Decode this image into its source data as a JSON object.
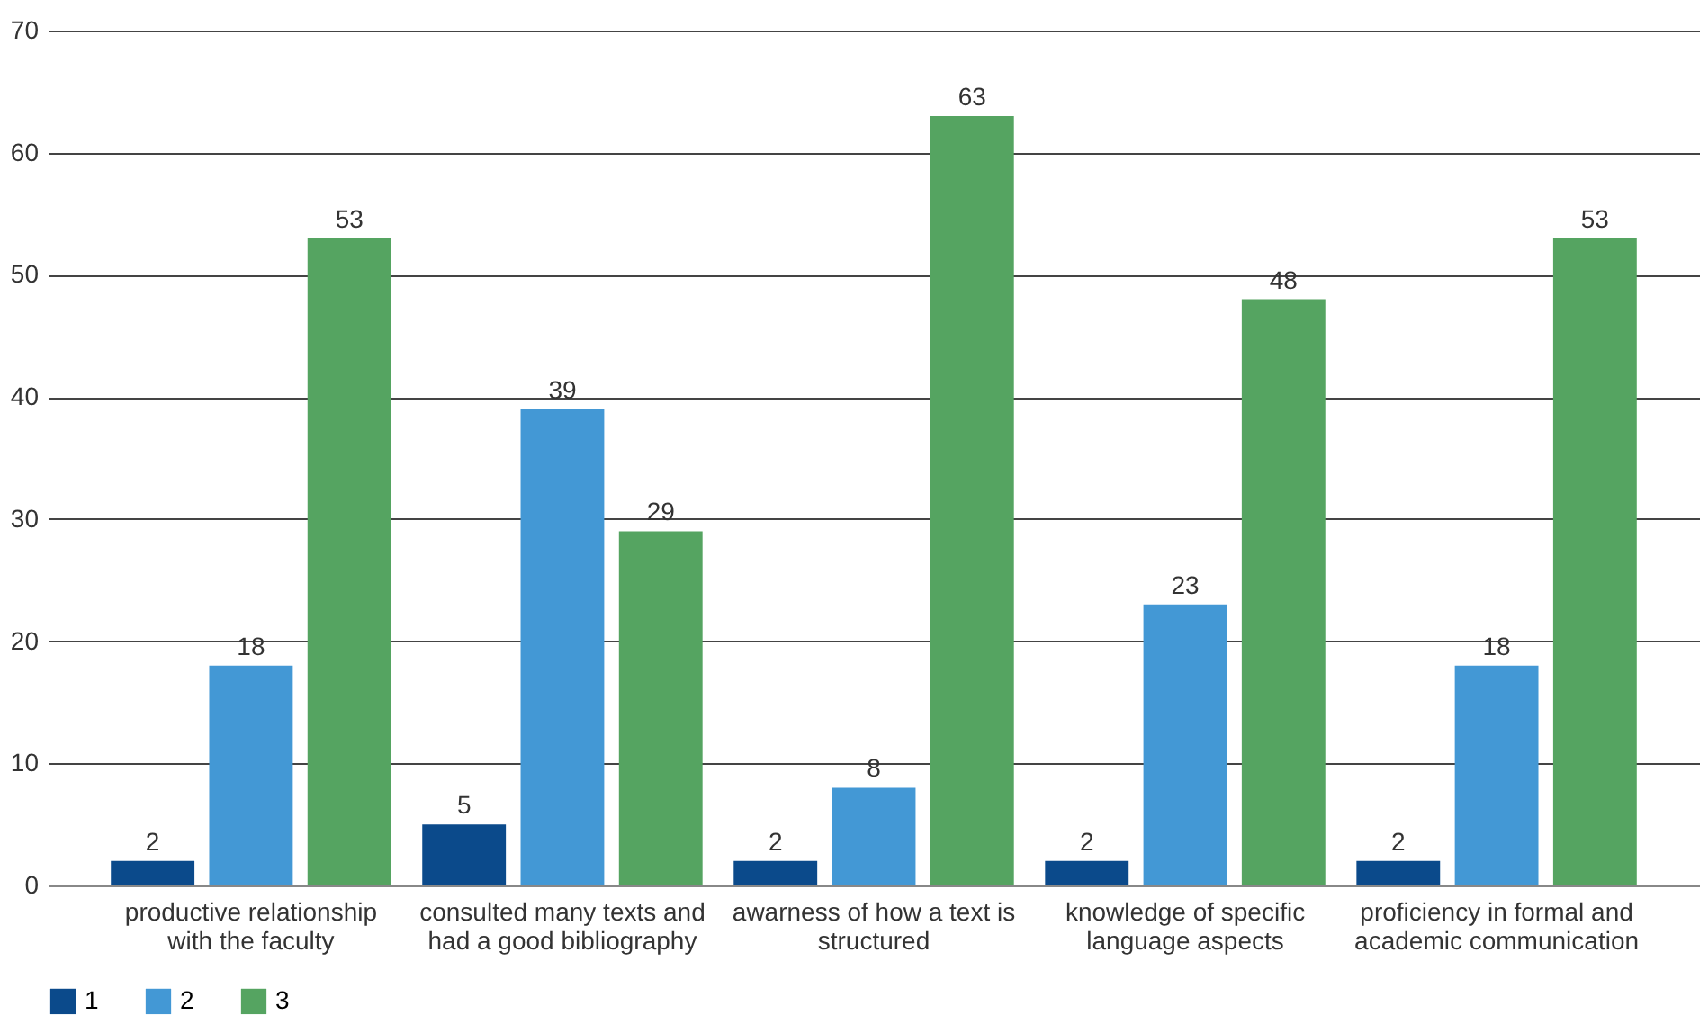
{
  "chart_data": {
    "type": "bar",
    "categories": [
      "productive relationship with the faculty",
      "consulted many texts and had a good bibliography",
      "awarness of how a text is structured",
      "knowledge of specific language aspects",
      "proficiency in formal and academic communication"
    ],
    "series": [
      {
        "name": "1",
        "color": "#0b4a8b",
        "values": [
          2,
          5,
          2,
          2,
          2
        ]
      },
      {
        "name": "2",
        "color": "#4398d5",
        "values": [
          18,
          39,
          8,
          23,
          18
        ]
      },
      {
        "name": "3",
        "color": "#55a461",
        "values": [
          53,
          29,
          63,
          48,
          53
        ]
      }
    ],
    "ylim": [
      0,
      70
    ],
    "yticks": [
      0,
      10,
      20,
      30,
      40,
      50,
      60,
      70
    ],
    "grid": "y",
    "legend": "bottom",
    "data_labels": true
  }
}
